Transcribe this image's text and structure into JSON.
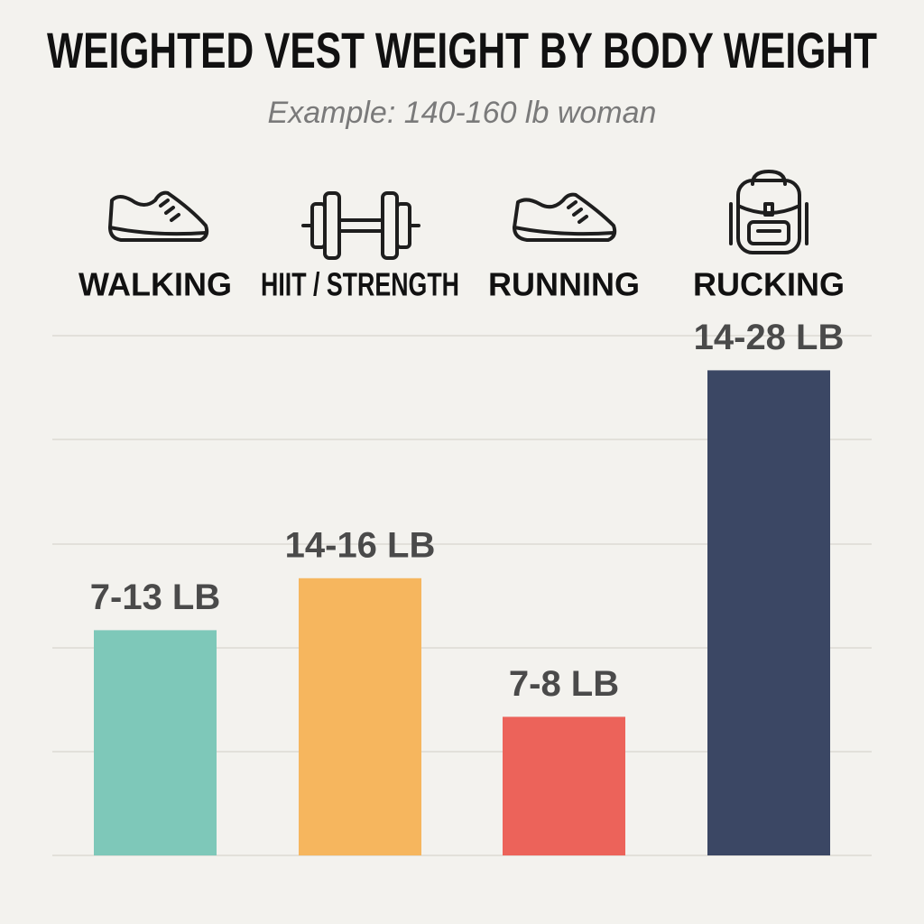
{
  "chart_data": {
    "type": "bar",
    "title": "WEIGHTED VEST WEIGHT BY BODY WEIGHT",
    "subtitle": "Example: 140-160 lb woman",
    "categories": [
      "WALKING",
      "HIIT / STRENGTH",
      "RUNNING",
      "RUCKING"
    ],
    "values": [
      [
        7,
        13
      ],
      [
        14,
        16
      ],
      [
        7,
        8
      ],
      [
        14,
        28
      ]
    ],
    "value_labels": [
      "7-13 LB",
      "14-16 LB",
      "7-8 LB",
      "14-28 LB"
    ],
    "colors": [
      "#7ec8b9",
      "#f6b65e",
      "#ec635a",
      "#3b4764"
    ],
    "ylim": [
      0,
      30
    ]
  }
}
